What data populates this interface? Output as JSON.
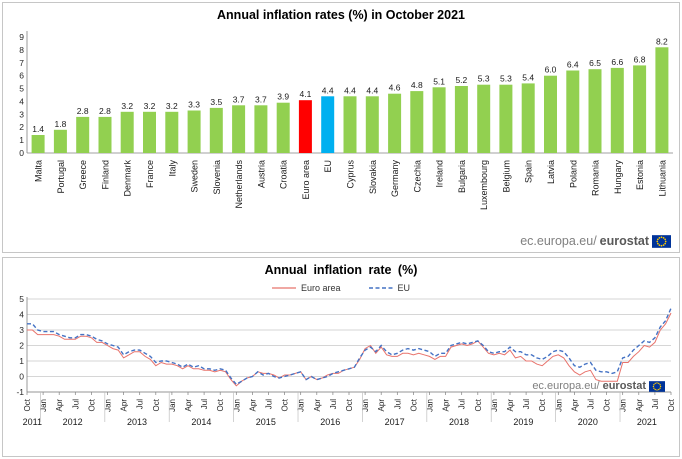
{
  "watermark": {
    "text": "ec.europa.eu/",
    "brand": "eurostat"
  },
  "chart_data": [
    {
      "type": "bar",
      "title": "Annual inflation rates (%) in October 2021",
      "categories": [
        "Malta",
        "Portugal",
        "Greece",
        "Finland",
        "Denmark",
        "France",
        "Italy",
        "Sweden",
        "Slovenia",
        "Netherlands",
        "Austria",
        "Croatia",
        "Euro area",
        "EU",
        "Cyprus",
        "Slovakia",
        "Germany",
        "Czechia",
        "Ireland",
        "Bulgaria",
        "Luxembourg",
        "Belgium",
        "Spain",
        "Latvia",
        "Poland",
        "Romania",
        "Hungary",
        "Estonia",
        "Lithuania"
      ],
      "values": [
        1.4,
        1.8,
        2.8,
        2.8,
        3.2,
        3.2,
        3.2,
        3.3,
        3.5,
        3.7,
        3.7,
        3.9,
        4.1,
        4.4,
        4.4,
        4.4,
        4.6,
        4.8,
        5.1,
        5.2,
        5.3,
        5.3,
        5.4,
        6.0,
        6.4,
        6.5,
        6.6,
        6.8,
        8.2
      ],
      "bar_color": "#92D050",
      "highlight": {
        "Euro area": "#FF0000",
        "EU": "#00B0F0"
      },
      "ylim": [
        0,
        9
      ],
      "yticks": [
        0,
        1,
        2,
        3,
        4,
        5,
        6,
        7,
        8,
        9
      ],
      "grid": false,
      "legend": "none"
    },
    {
      "type": "line",
      "title": "Annual inflation rate (%)",
      "x_range": "Oct 2011 - Oct 2021",
      "x_month_ticks": [
        "Oct",
        "Jan",
        "Apr",
        "Jul",
        "Oct",
        "Jan",
        "Apr",
        "Jul",
        "Oct",
        "Jan",
        "Apr",
        "Jul",
        "Oct",
        "Jan",
        "Apr",
        "Jul",
        "Oct",
        "Jan",
        "Apr",
        "Jul",
        "Oct",
        "Jan",
        "Apr",
        "Jul",
        "Oct",
        "Jan",
        "Apr",
        "Jul",
        "Oct",
        "Jan",
        "Apr",
        "Jul",
        "Oct",
        "Jan",
        "Apr",
        "Jul",
        "Oct",
        "Jan",
        "Apr",
        "Jul",
        "Oct"
      ],
      "years": [
        "2011",
        "2012",
        "2013",
        "2014",
        "2015",
        "2016",
        "2017",
        "2018",
        "2019",
        "2020",
        "2021"
      ],
      "ylim": [
        -1,
        5
      ],
      "yticks": [
        -1,
        0,
        1,
        2,
        3,
        4,
        5
      ],
      "grid": true,
      "legend_position": "top",
      "series": [
        {
          "name": "Euro area",
          "color": "#E8736C",
          "style": "solid",
          "values": [
            3.0,
            3.0,
            2.7,
            2.7,
            2.7,
            2.7,
            2.6,
            2.4,
            2.4,
            2.4,
            2.6,
            2.6,
            2.5,
            2.2,
            2.2,
            2.0,
            1.8,
            1.7,
            1.2,
            1.4,
            1.6,
            1.6,
            1.3,
            1.1,
            0.7,
            0.9,
            0.8,
            0.8,
            0.7,
            0.5,
            0.7,
            0.5,
            0.5,
            0.4,
            0.4,
            0.3,
            0.4,
            0.3,
            -0.2,
            -0.6,
            -0.3,
            -0.1,
            0.0,
            0.3,
            0.2,
            0.2,
            0.1,
            -0.1,
            0.1,
            0.1,
            0.2,
            0.3,
            -0.2,
            0.0,
            -0.2,
            -0.1,
            0.1,
            0.2,
            0.2,
            0.4,
            0.5,
            0.6,
            1.1,
            1.8,
            2.0,
            1.5,
            1.9,
            1.4,
            1.3,
            1.3,
            1.5,
            1.5,
            1.4,
            1.5,
            1.4,
            1.3,
            1.1,
            1.3,
            1.3,
            1.9,
            2.0,
            2.1,
            2.0,
            2.1,
            2.3,
            1.9,
            1.5,
            1.4,
            1.5,
            1.4,
            1.7,
            1.2,
            1.3,
            1.0,
            1.0,
            0.8,
            0.7,
            1.0,
            1.3,
            1.4,
            1.2,
            0.7,
            0.3,
            0.1,
            0.3,
            0.4,
            -0.2,
            -0.3,
            -0.3,
            -0.3,
            -0.3,
            0.9,
            0.9,
            1.3,
            1.6,
            2.0,
            1.9,
            2.2,
            3.0,
            3.4,
            4.1
          ]
        },
        {
          "name": "EU",
          "color": "#4472C4",
          "style": "dashed",
          "values": [
            3.4,
            3.4,
            3.0,
            2.9,
            2.9,
            2.9,
            2.7,
            2.6,
            2.5,
            2.5,
            2.7,
            2.7,
            2.6,
            2.4,
            2.3,
            2.1,
            2.0,
            1.9,
            1.4,
            1.6,
            1.7,
            1.7,
            1.5,
            1.3,
            0.9,
            1.0,
            1.0,
            0.9,
            0.8,
            0.6,
            0.8,
            0.6,
            0.7,
            0.5,
            0.5,
            0.4,
            0.5,
            0.4,
            -0.1,
            -0.5,
            -0.3,
            -0.1,
            0.0,
            0.3,
            0.1,
            0.2,
            0.0,
            -0.1,
            0.0,
            0.1,
            0.2,
            0.3,
            -0.2,
            0.0,
            -0.2,
            -0.1,
            0.0,
            0.2,
            0.3,
            0.4,
            0.5,
            0.6,
            1.2,
            1.7,
            1.9,
            1.6,
            2.0,
            1.6,
            1.4,
            1.5,
            1.7,
            1.8,
            1.7,
            1.8,
            1.7,
            1.6,
            1.3,
            1.5,
            1.5,
            2.0,
            2.1,
            2.2,
            2.1,
            2.2,
            2.3,
            2.0,
            1.6,
            1.5,
            1.6,
            1.6,
            1.9,
            1.6,
            1.6,
            1.4,
            1.4,
            1.2,
            1.1,
            1.3,
            1.6,
            1.7,
            1.6,
            1.2,
            0.7,
            0.6,
            0.8,
            0.9,
            0.4,
            0.3,
            0.3,
            0.2,
            0.3,
            1.2,
            1.3,
            1.7,
            2.0,
            2.3,
            2.2,
            2.5,
            3.2,
            3.6,
            4.4
          ]
        }
      ]
    }
  ]
}
